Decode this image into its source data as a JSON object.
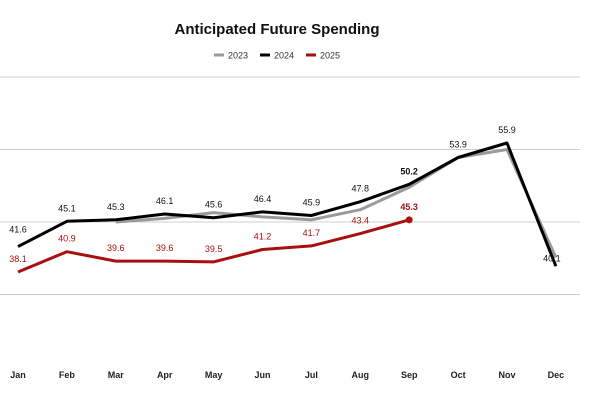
{
  "chart_data": {
    "type": "line",
    "title": "Anticipated Future Spending",
    "categories": [
      "Jan",
      "Feb",
      "Mar",
      "Apr",
      "May",
      "Jun",
      "Jul",
      "Aug",
      "Sep",
      "Oct",
      "Nov",
      "Dec"
    ],
    "ylim": [
      25,
      65
    ],
    "gridlines_y": [
      35,
      45,
      55,
      65
    ],
    "legend_position": "top-center",
    "series": [
      {
        "name": "2023",
        "color": "#9a9a9a",
        "values": [
          null,
          null,
          45.0,
          45.5,
          46.3,
          45.7,
          45.3,
          46.7,
          49.8,
          53.9,
          55.0,
          40.1
        ],
        "labels": [
          "",
          "",
          "",
          "",
          "",
          "",
          "",
          "",
          "",
          "",
          "",
          "40.1"
        ]
      },
      {
        "name": "2024",
        "color": "#000000",
        "values": [
          41.6,
          45.1,
          45.3,
          46.1,
          45.6,
          46.4,
          45.9,
          47.8,
          50.2,
          53.9,
          55.9,
          38.9
        ],
        "labels": [
          "41.6",
          "45.1",
          "45.3",
          "46.1",
          "45.6",
          "46.4",
          "45.9",
          "47.8",
          "50.2",
          "53.9",
          "55.9",
          ""
        ]
      },
      {
        "name": "2025",
        "color": "#a81010",
        "values": [
          38.1,
          40.9,
          39.6,
          39.6,
          39.5,
          41.2,
          41.7,
          43.4,
          45.3,
          null,
          null,
          null
        ],
        "labels": [
          "38.1",
          "40.9",
          "39.6",
          "39.6",
          "39.5",
          "41.2",
          "41.7",
          "43.4",
          "45.3",
          "",
          "",
          ""
        ]
      }
    ]
  }
}
